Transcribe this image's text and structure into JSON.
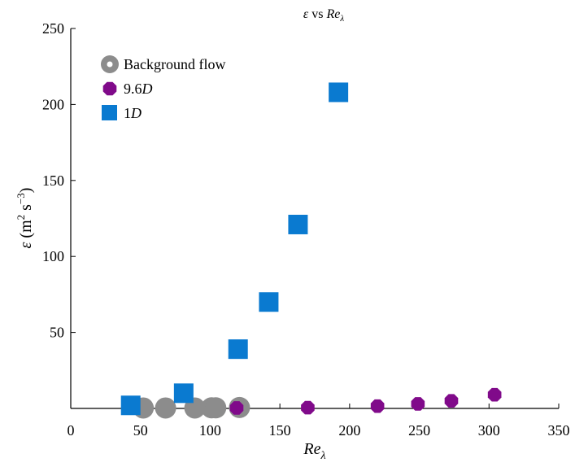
{
  "chart_data": {
    "type": "scatter",
    "title_parts": {
      "eps": "ε",
      "vs": " vs ",
      "re": "Re",
      "lambda": "λ"
    },
    "xlabel_parts": {
      "re": "Re",
      "lambda": "λ"
    },
    "ylabel_parts": {
      "eps": "ε",
      "open": " (m",
      "sq": "2",
      "mid": " s",
      "exp": "−3",
      "close": ")"
    },
    "xlim": [
      0,
      350
    ],
    "ylim": [
      0,
      250
    ],
    "xticks": [
      0,
      50,
      100,
      150,
      200,
      250,
      300,
      350
    ],
    "yticks": [
      50,
      100,
      150,
      200,
      250
    ],
    "grid": false,
    "legend_position": "top-left",
    "series": [
      {
        "name": "Background flow",
        "marker": "circle",
        "color": "#8c8c8c",
        "x": [
          52,
          68,
          89,
          101,
          104,
          121
        ],
        "y": [
          0.3,
          0.3,
          0.3,
          0.4,
          0.4,
          0.6
        ]
      },
      {
        "name_parts": {
          "num": "9.6",
          "unit": "D"
        },
        "marker": "octagon",
        "color": "#800a8a",
        "x": [
          119,
          170,
          220,
          249,
          273,
          304
        ],
        "y": [
          0.3,
          0.5,
          1.5,
          3,
          5,
          9
        ]
      },
      {
        "name_parts": {
          "num": "1",
          "unit": "D"
        },
        "marker": "square",
        "color": "#0a7ad0",
        "x": [
          43,
          81,
          120,
          142,
          163,
          192
        ],
        "y": [
          2,
          10,
          39,
          70,
          121,
          208
        ]
      }
    ]
  }
}
